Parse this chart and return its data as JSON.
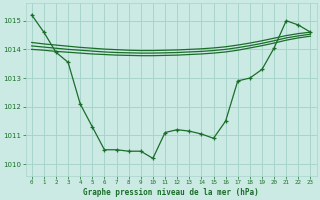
{
  "title": "Graphe pression niveau de la mer (hPa)",
  "bg_color": "#cceae4",
  "grid_color": "#a8d4cc",
  "line_color": "#1a6e2a",
  "xlim": [
    -0.5,
    23.5
  ],
  "ylim": [
    1009.6,
    1015.6
  ],
  "yticks": [
    1010,
    1011,
    1012,
    1013,
    1014,
    1015
  ],
  "xticks": [
    0,
    1,
    2,
    3,
    4,
    5,
    6,
    7,
    8,
    9,
    10,
    11,
    12,
    13,
    14,
    15,
    16,
    17,
    18,
    19,
    20,
    21,
    22,
    23
  ],
  "main_x": [
    0,
    1,
    2,
    3,
    4,
    5,
    6,
    7,
    8,
    9,
    10,
    11,
    12,
    13,
    14,
    15,
    16,
    17,
    18,
    19,
    20,
    21,
    22,
    23
  ],
  "main_y": [
    1015.2,
    1014.6,
    1013.9,
    1013.55,
    1012.1,
    1011.3,
    1010.5,
    1010.5,
    1010.45,
    1010.45,
    1010.2,
    1011.1,
    1011.2,
    1011.15,
    1011.05,
    1010.9,
    1011.5,
    1012.9,
    1013.0,
    1013.3,
    1014.05,
    1015.0,
    1014.85,
    1014.6
  ],
  "smooth1_y": [
    1014.0,
    1013.97,
    1013.93,
    1013.9,
    1013.87,
    1013.84,
    1013.82,
    1013.8,
    1013.79,
    1013.78,
    1013.78,
    1013.79,
    1013.8,
    1013.82,
    1013.84,
    1013.87,
    1013.91,
    1013.97,
    1014.05,
    1014.13,
    1014.22,
    1014.32,
    1014.4,
    1014.46
  ],
  "smooth2_y": [
    1014.12,
    1014.08,
    1014.04,
    1014.0,
    1013.97,
    1013.94,
    1013.91,
    1013.89,
    1013.88,
    1013.87,
    1013.87,
    1013.88,
    1013.89,
    1013.91,
    1013.93,
    1013.96,
    1014.0,
    1014.06,
    1014.13,
    1014.21,
    1014.3,
    1014.4,
    1014.47,
    1014.53
  ],
  "smooth3_y": [
    1014.24,
    1014.19,
    1014.15,
    1014.11,
    1014.07,
    1014.04,
    1014.01,
    1013.99,
    1013.97,
    1013.96,
    1013.96,
    1013.97,
    1013.98,
    1014.0,
    1014.02,
    1014.05,
    1014.09,
    1014.15,
    1014.22,
    1014.3,
    1014.39,
    1014.48,
    1014.55,
    1014.6
  ]
}
